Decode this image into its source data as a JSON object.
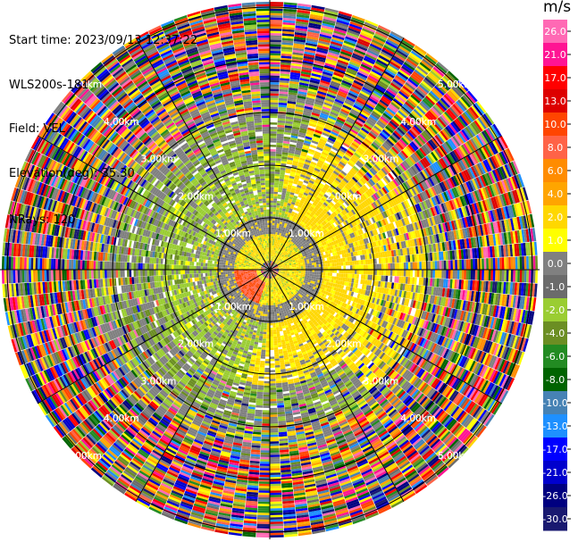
{
  "header": {
    "start_time": "Start time: 2023/09/13 12:37:22",
    "instrument": "WLS200s-181",
    "field": "Field: VEL",
    "elevation": "Elevation(deg): 35.30",
    "nrays": "NRays: 120"
  },
  "range_labels": [
    "1.00km",
    "2.00km",
    "3.00km",
    "4.00km",
    "5.00km"
  ],
  "colorbar": {
    "unit": "m/s",
    "ticks": [
      "26.0",
      "21.0",
      "17.0",
      "13.0",
      "10.0",
      "8.0",
      "6.0",
      "4.0",
      "2.0",
      "1.0",
      "0.0",
      "-1.0",
      "-2.0",
      "-4.0",
      "-6.0",
      "-8.0",
      "-10.0",
      "-13.0",
      "-17.0",
      "-21.0",
      "-26.0",
      "-30.0"
    ],
    "colors": [
      "#ff69b4",
      "#ff1493",
      "#ff0000",
      "#dd0000",
      "#ff4500",
      "#ff6347",
      "#ff8c00",
      "#ffa500",
      "#ffd700",
      "#ffff00",
      "#808080",
      "#6b6b6b",
      "#9acd32",
      "#6b8e23",
      "#228b22",
      "#006400",
      "#4682b4",
      "#1e90ff",
      "#0000ff",
      "#0000cd",
      "#000080",
      "#191970"
    ]
  }
}
